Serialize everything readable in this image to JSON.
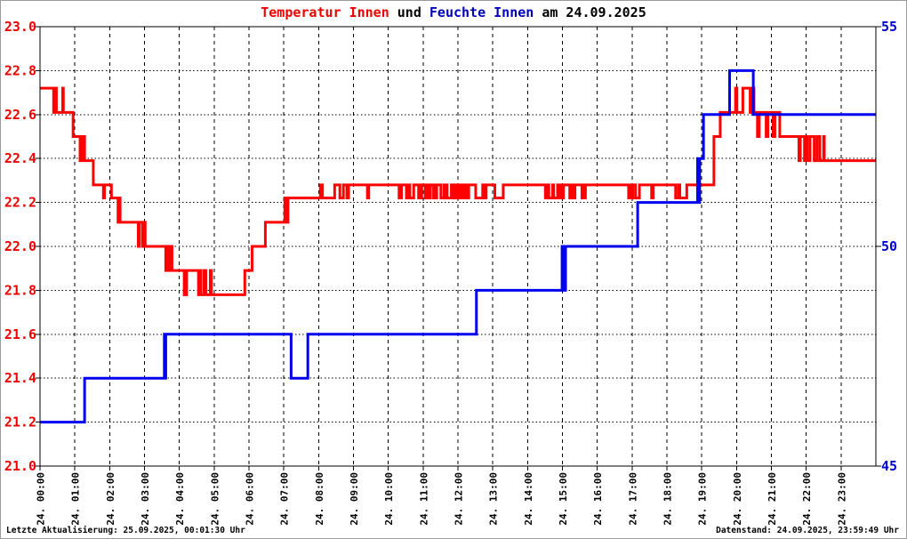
{
  "title": {
    "segments": [
      {
        "text": "Temperatur Innen",
        "color": "#ee0000"
      },
      {
        "text": " und ",
        "color": "#000000"
      },
      {
        "text": "Feuchte Innen",
        "color": "#0000bb"
      },
      {
        "text": " am 24.09.2025",
        "color": "#000000"
      }
    ]
  },
  "footer": {
    "left": "Letzte Aktualisierung: 25.09.2025, 00:01:30 Uhr",
    "right": "Datenstand: 24.09.2025, 23:59:49 Uhr"
  },
  "colors": {
    "temperature_line": "#ff0000",
    "humidity_line": "#0000ee",
    "left_axis_labels": "#ee0000",
    "right_axis_labels": "#0000cc",
    "grid": "#000000",
    "plot_border": "#000000",
    "background": "#ffffff"
  },
  "chart_data": {
    "type": "line",
    "title": "Temperatur Innen und Feuchte Innen am 24.09.2025",
    "grid": {
      "horizontal_style": "dotted",
      "vertical_style": "dashed",
      "grid_on": true
    },
    "x_axis": {
      "range_hours": [
        0,
        24
      ],
      "labels": [
        "24. 00:00",
        "24. 01:00",
        "24. 02:00",
        "24. 03:00",
        "24. 04:00",
        "24. 05:00",
        "24. 06:00",
        "24. 07:00",
        "24. 08:00",
        "24. 09:00",
        "24. 10:00",
        "24. 11:00",
        "24. 12:00",
        "24. 13:00",
        "24. 14:00",
        "24. 15:00",
        "24. 16:00",
        "24. 17:00",
        "24. 18:00",
        "24. 19:00",
        "24. 20:00",
        "24. 21:00",
        "24. 22:00",
        "24. 23:00"
      ]
    },
    "y_axis_left": {
      "range": [
        21.0,
        23.0
      ],
      "tick_step": 0.2,
      "tick_labels": [
        "23.0",
        "22.8",
        "22.6",
        "22.4",
        "22.2",
        "22.0",
        "21.8",
        "21.6",
        "21.4",
        "21.2",
        "21.0"
      ],
      "color": "#ee0000"
    },
    "y_axis_right": {
      "range": [
        45,
        55
      ],
      "tick_values": [
        55,
        50,
        45
      ],
      "tick_labels": [
        "55",
        "50",
        "45"
      ],
      "color": "#0000cc"
    },
    "series": [
      {
        "name": "Temperatur Innen",
        "axis": "left",
        "color": "#ff0000",
        "line_width": 3,
        "interpolation": "step-after",
        "steps": [
          [
            0.0,
            22.72
          ],
          [
            0.69,
            22.61
          ],
          [
            0.95,
            22.5
          ],
          [
            1.28,
            22.39
          ],
          [
            1.53,
            22.28
          ],
          [
            2.05,
            22.22
          ],
          [
            2.37,
            22.11
          ],
          [
            3.01,
            22.0
          ],
          [
            3.78,
            21.89
          ],
          [
            4.75,
            21.78
          ],
          [
            5.87,
            21.89
          ],
          [
            6.08,
            22.0
          ],
          [
            6.46,
            22.11
          ],
          [
            7.22,
            22.22
          ],
          [
            8.04,
            22.28
          ],
          [
            19.35,
            22.5
          ],
          [
            19.53,
            22.61
          ],
          [
            21.24,
            22.5
          ],
          [
            22.52,
            22.39
          ]
        ],
        "noise_bursts": [
          {
            "t0": 0.33,
            "t1": 0.69,
            "lo": 22.61,
            "hi": 22.72,
            "p": 0.02
          },
          {
            "t0": 1.15,
            "t1": 1.28,
            "lo": 22.39,
            "hi": 22.5,
            "p": 0.03
          },
          {
            "t0": 1.82,
            "t1": 1.88,
            "lo": 22.22,
            "hi": 22.28,
            "p": 0.03
          },
          {
            "t0": 2.17,
            "t1": 2.37,
            "lo": 22.11,
            "hi": 22.22,
            "p": 0.03
          },
          {
            "t0": 2.81,
            "t1": 3.01,
            "lo": 22.0,
            "hi": 22.11,
            "p": 0.03
          },
          {
            "t0": 3.57,
            "t1": 3.78,
            "lo": 21.89,
            "hi": 22.0,
            "p": 0.03
          },
          {
            "t0": 4.13,
            "t1": 4.2,
            "lo": 21.78,
            "hi": 21.89,
            "p": 0.03
          },
          {
            "t0": 4.42,
            "t1": 4.73,
            "lo": 21.78,
            "hi": 21.89,
            "p": 0.03
          },
          {
            "t0": 4.88,
            "t1": 4.94,
            "lo": 21.78,
            "hi": 21.89,
            "p": 0.03,
            "duty": 0.6
          },
          {
            "t0": 7.02,
            "t1": 7.22,
            "lo": 22.11,
            "hi": 22.22,
            "p": 0.03
          },
          {
            "t0": 8.1,
            "t1": 9.0,
            "lo": 22.22,
            "hi": 22.28,
            "p": 0.05
          },
          {
            "t0": 9.35,
            "t1": 9.5,
            "lo": 22.22,
            "hi": 22.28,
            "p": 0.04
          },
          {
            "t0": 10.3,
            "t1": 10.95,
            "lo": 22.22,
            "hi": 22.28,
            "p": 0.035
          },
          {
            "t0": 11.05,
            "t1": 12.3,
            "lo": 22.22,
            "hi": 22.28,
            "p": 0.03
          },
          {
            "t0": 12.5,
            "t1": 12.8,
            "lo": 22.22,
            "hi": 22.28,
            "p": 0.05
          },
          {
            "t0": 13.05,
            "t1": 13.3,
            "lo": 22.22,
            "hi": 22.28,
            "p": 0.04
          },
          {
            "t0": 14.5,
            "t1": 15.05,
            "lo": 22.22,
            "hi": 22.28,
            "p": 0.035
          },
          {
            "t0": 15.15,
            "t1": 15.35,
            "lo": 22.22,
            "hi": 22.28,
            "p": 0.05
          },
          {
            "t0": 15.55,
            "t1": 15.65,
            "lo": 22.22,
            "hi": 22.28,
            "p": 0.04
          },
          {
            "t0": 16.85,
            "t1": 17.2,
            "lo": 22.22,
            "hi": 22.28,
            "p": 0.04
          },
          {
            "t0": 17.55,
            "t1": 17.68,
            "lo": 22.22,
            "hi": 22.28,
            "p": 0.05
          },
          {
            "t0": 18.25,
            "t1": 18.6,
            "lo": 22.22,
            "hi": 22.28,
            "p": 0.04
          },
          {
            "t0": 19.9,
            "t1": 20.5,
            "lo": 22.61,
            "hi": 22.72,
            "p": 0.035,
            "duty": 0.45
          },
          {
            "t0": 20.6,
            "t1": 21.2,
            "lo": 22.5,
            "hi": 22.61,
            "p": 0.05,
            "duty": 0.25
          },
          {
            "t0": 21.75,
            "t1": 22.5,
            "lo": 22.39,
            "hi": 22.5,
            "p": 0.04
          }
        ]
      },
      {
        "name": "Feuchte Innen",
        "axis": "right",
        "color": "#0000ee",
        "line_width": 3,
        "interpolation": "step-after",
        "steps": [
          [
            0.0,
            46
          ],
          [
            1.28,
            47
          ],
          [
            3.74,
            48
          ],
          [
            7.2,
            47
          ],
          [
            7.68,
            48
          ],
          [
            12.52,
            49
          ],
          [
            15.08,
            50
          ],
          [
            17.15,
            51
          ],
          [
            18.94,
            52
          ],
          [
            19.05,
            53
          ],
          [
            19.8,
            54
          ],
          [
            20.48,
            53
          ]
        ],
        "noise_bursts": [
          {
            "t0": 3.52,
            "t1": 3.74,
            "lo": 47,
            "hi": 48,
            "p": 0.02
          },
          {
            "t0": 14.98,
            "t1": 15.07,
            "lo": 49,
            "hi": 50,
            "p": 0.025
          },
          {
            "t0": 18.88,
            "t1": 18.94,
            "lo": 51,
            "hi": 52,
            "p": 0.03
          }
        ]
      }
    ]
  }
}
